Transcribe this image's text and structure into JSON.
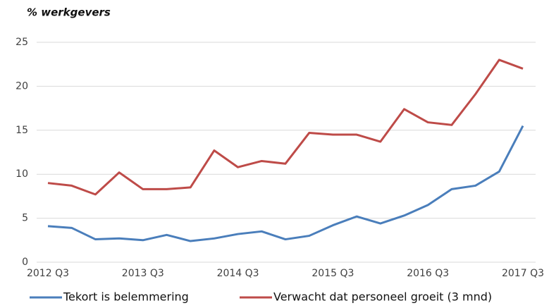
{
  "chart_data": {
    "type": "line",
    "title": "% werkgevers",
    "categories": [
      "2012 Q3",
      null,
      null,
      null,
      "2013 Q3",
      null,
      null,
      null,
      "2014 Q3",
      null,
      null,
      null,
      "2015 Q3",
      null,
      null,
      null,
      "2016 Q3",
      null,
      null,
      null,
      "2017 Q3"
    ],
    "series": [
      {
        "name": "Tekort is belemmering",
        "color": "#4a7ebb",
        "values": [
          4.1,
          3.9,
          2.6,
          2.7,
          2.5,
          3.1,
          2.4,
          2.7,
          3.2,
          3.5,
          2.6,
          3.0,
          4.2,
          5.2,
          4.4,
          5.3,
          6.5,
          8.3,
          8.7,
          10.3,
          15.5
        ]
      },
      {
        "name": "Verwacht dat personeel groeit (3 mnd)",
        "color": "#be4b48",
        "values": [
          9.0,
          8.7,
          7.7,
          10.2,
          8.3,
          8.3,
          8.5,
          12.7,
          10.8,
          11.5,
          11.2,
          14.7,
          14.5,
          14.5,
          13.7,
          17.4,
          15.9,
          15.6,
          19.1,
          23.0,
          22.0
        ]
      }
    ],
    "ylim": [
      0,
      25
    ],
    "yticks": [
      0,
      5,
      10,
      15,
      20,
      25
    ],
    "grid": true,
    "legend": "bottom"
  }
}
